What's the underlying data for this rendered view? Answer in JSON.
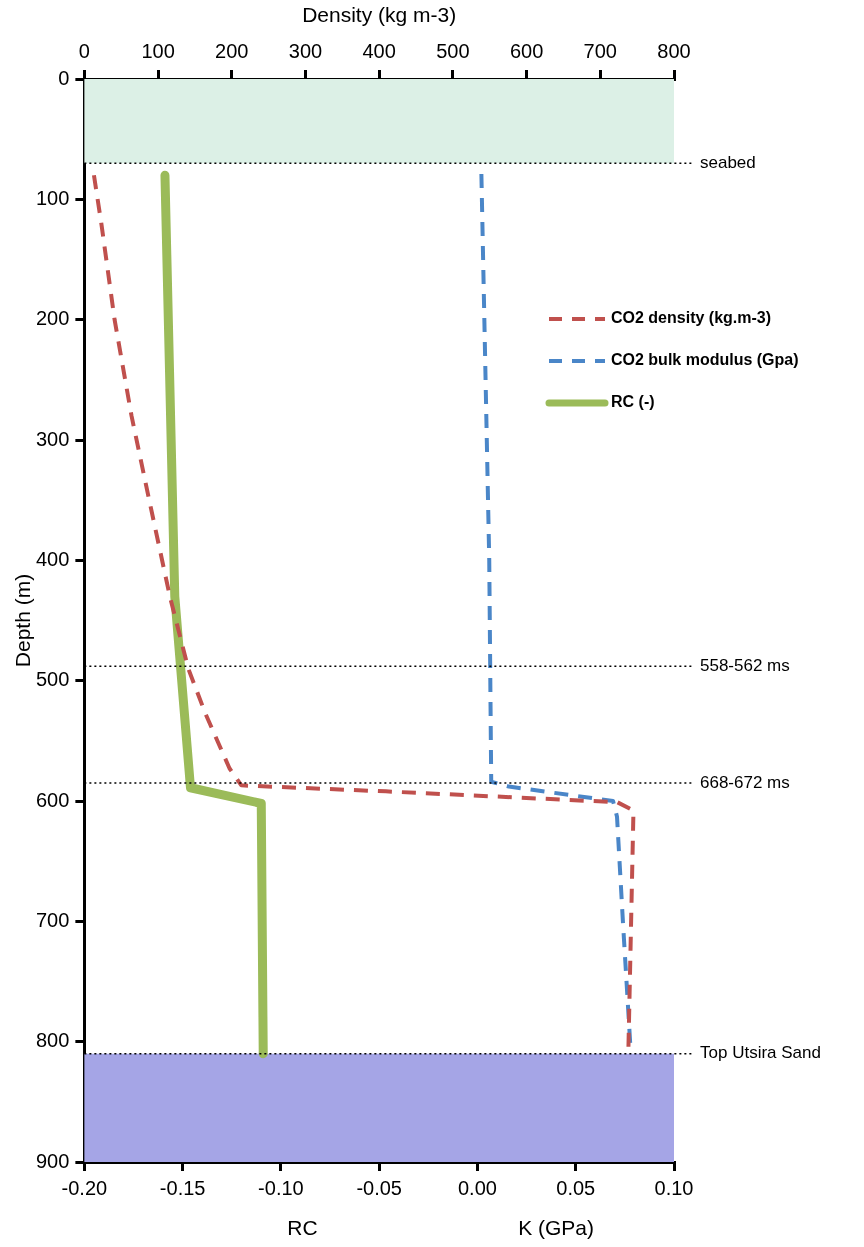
{
  "chart_data": {
    "type": "line",
    "xlabel": "RC",
    "x2label": "Density (kg m-3)",
    "ylabel": "Depth (m)",
    "annotations": [
      "K (GPa)"
    ],
    "xlim": [
      -0.2,
      0.1
    ],
    "xticks": [
      {
        "value": -0.2,
        "label": "-0.20"
      },
      {
        "value": -0.15,
        "label": "-0.15"
      },
      {
        "value": -0.1,
        "label": "-0.10"
      },
      {
        "value": -0.05,
        "label": "-0.05"
      },
      {
        "value": 0,
        "label": "0.00"
      },
      {
        "value": 0.05,
        "label": "0.05"
      },
      {
        "value": 0.1,
        "label": "0.10"
      }
    ],
    "x2lim": [
      0,
      800
    ],
    "x2ticks": [
      0,
      100,
      200,
      300,
      400,
      500,
      600,
      700,
      800
    ],
    "ylim": [
      900,
      0
    ],
    "yticks": [
      0,
      100,
      200,
      300,
      400,
      500,
      600,
      700,
      800,
      900
    ],
    "grid": false,
    "legend": "top right",
    "marker": "none",
    "series": [
      {
        "name": "CO2 density (kg.m-3)",
        "color": "#c0504d",
        "axis": "x2",
        "line_style": "dashed",
        "x": [
          13,
          23,
          41,
          64,
          88,
          116,
          141,
          164,
          197,
          213,
          409,
          723,
          745,
          738
        ],
        "values": [
          80,
          120,
          200,
          280,
          350,
          430,
          490,
          527,
          573,
          587,
          592,
          601,
          608,
          810
        ]
      },
      {
        "name": "CO2 bulk modulus (Gpa)",
        "color": "#4a86c8",
        "line_style": "dashed",
        "x": [
          0.002,
          0.006,
          0.007,
          0.016,
          0.069,
          0.071,
          0.074,
          0.078
        ],
        "values": [
          79,
          400,
          584,
          588,
          600,
          613,
          700,
          809
        ]
      },
      {
        "name": "RC (-)",
        "color": "#9bbb59",
        "line_style": "solid",
        "x": [
          -0.159,
          -0.154,
          -0.146,
          -0.11,
          -0.109
        ],
        "values": [
          80,
          430,
          589,
          602,
          810
        ]
      }
    ],
    "ref_lines": [
      {
        "axis": "y",
        "value": 70,
        "label": "seabed",
        "color": "#000000",
        "line_style": "dotted"
      },
      {
        "axis": "y",
        "value": 488,
        "label": "558-562 ms",
        "color": "#000000",
        "line_style": "dotted"
      },
      {
        "axis": "y",
        "value": 585,
        "label": "668-672 ms",
        "color": "#000000",
        "line_style": "dotted"
      },
      {
        "axis": "y",
        "value": 810,
        "label": "Top Utsira Sand",
        "color": "#000000",
        "line_style": "dotted"
      }
    ],
    "bands": [
      {
        "axis": "y",
        "from": 0,
        "to": 70,
        "color": "#dcf0e6"
      },
      {
        "axis": "y",
        "from": 810,
        "to": 900,
        "color": "#a5a5e6"
      }
    ]
  }
}
